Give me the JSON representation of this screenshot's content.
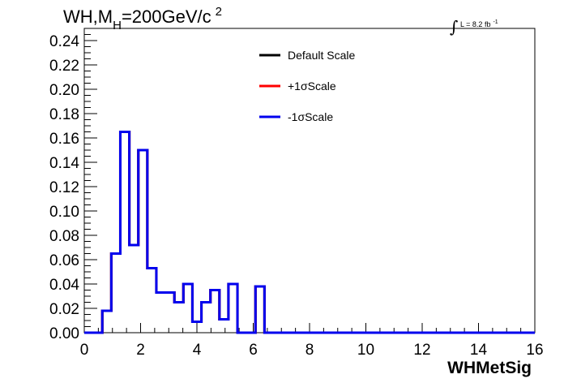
{
  "chart_data": {
    "type": "line",
    "title_parts": {
      "a": "WH,M",
      "sub": "H",
      "b": "=200GeV/c",
      "sup": "2"
    },
    "lumi": {
      "integral": "∫",
      "text": "L = 8.2 fb",
      "sup": "-1"
    },
    "xlabel": "WHMetSig",
    "ylabel": "",
    "xlim": [
      0,
      16
    ],
    "ylim": [
      0,
      0.25
    ],
    "x_ticks": [
      0,
      2,
      4,
      6,
      8,
      10,
      12,
      14,
      16
    ],
    "x_tick_labels": [
      "0",
      "2",
      "4",
      "6",
      "8",
      "10",
      "12",
      "14",
      "16"
    ],
    "y_ticks": [
      0,
      0.02,
      0.04,
      0.06,
      0.08,
      0.1,
      0.12,
      0.14,
      0.16,
      0.18,
      0.2,
      0.22,
      0.24
    ],
    "y_tick_labels": [
      "0.00",
      "0.02",
      "0.04",
      "0.06",
      "0.08",
      "0.10",
      "0.12",
      "0.14",
      "0.16",
      "0.18",
      "0.20",
      "0.22",
      "0.24"
    ],
    "grid": false,
    "legend_position": "top-center",
    "bin_edges": [
      0,
      0.64,
      0.96,
      1.28,
      1.6,
      1.92,
      2.24,
      2.56,
      2.88,
      3.2,
      3.52,
      3.84,
      4.16,
      4.48,
      4.8,
      5.12,
      5.44,
      5.76,
      6.08,
      6.4,
      6.72,
      16
    ],
    "series": [
      {
        "name": "Default Scale",
        "color": "#000000",
        "values": [
          0,
          0.018,
          0.065,
          0.165,
          0.072,
          0.15,
          0.053,
          0.033,
          0.033,
          0.025,
          0.04,
          0.009,
          0.025,
          0.035,
          0.011,
          0.04,
          0,
          0,
          0.038,
          0,
          0
        ]
      },
      {
        "name": "+1σScale",
        "color": "#ff0000",
        "values": [
          0,
          0.018,
          0.065,
          0.165,
          0.072,
          0.15,
          0.053,
          0.033,
          0.033,
          0.025,
          0.04,
          0.009,
          0.025,
          0.035,
          0.011,
          0.04,
          0,
          0,
          0.038,
          0,
          0
        ]
      },
      {
        "name": "-1σScale",
        "color": "#0000ee",
        "values": [
          0,
          0.018,
          0.065,
          0.165,
          0.072,
          0.15,
          0.053,
          0.033,
          0.033,
          0.025,
          0.04,
          0.009,
          0.025,
          0.035,
          0.011,
          0.04,
          0,
          0,
          0.038,
          0,
          0
        ]
      }
    ]
  }
}
